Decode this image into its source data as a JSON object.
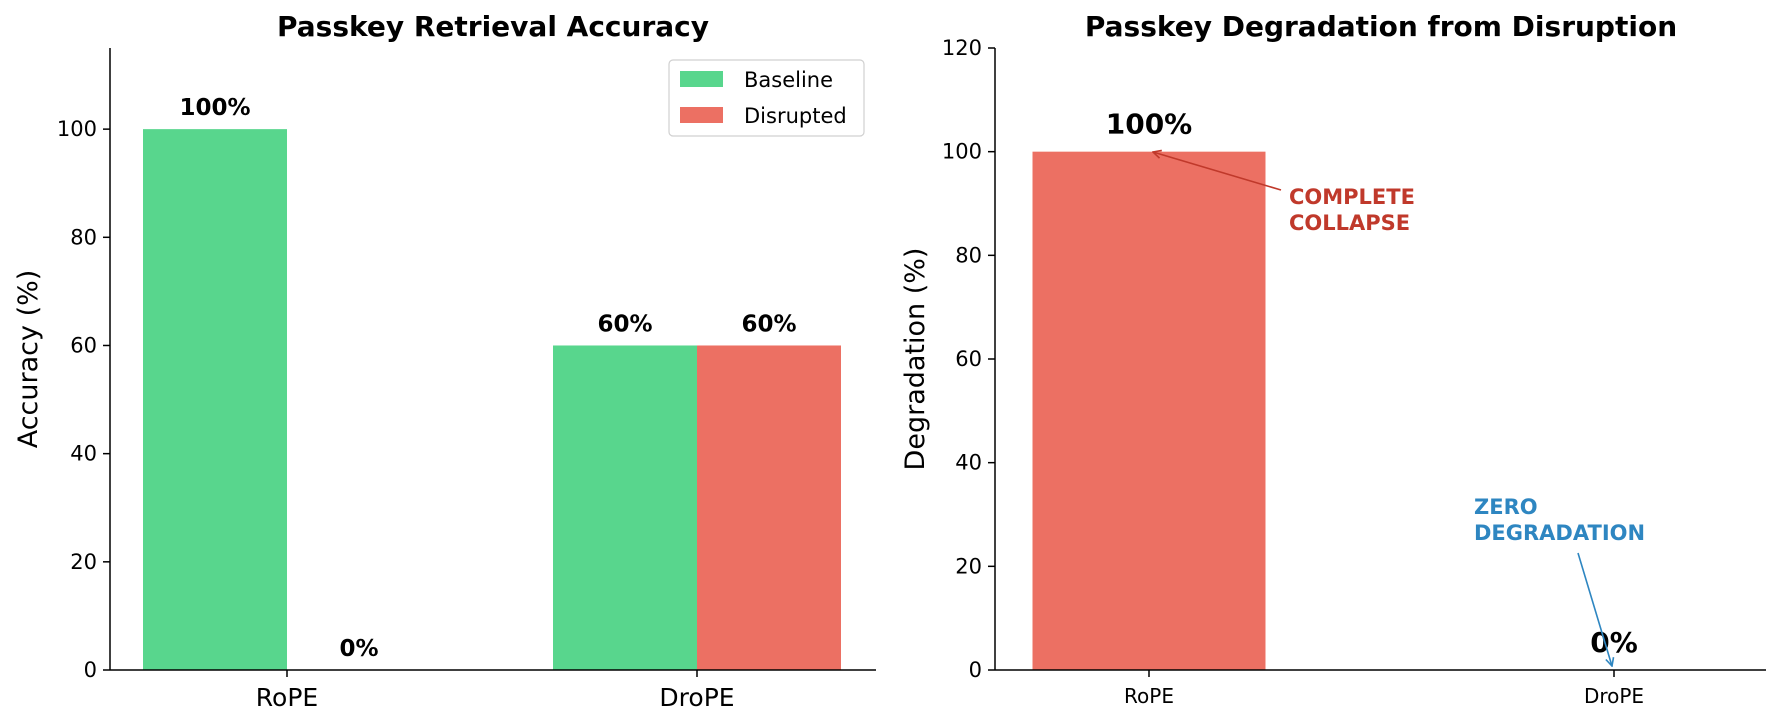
{
  "chart_data": [
    {
      "type": "bar",
      "title": "Passkey Retrieval Accuracy",
      "xlabel": "",
      "ylabel": "Accuracy (%)",
      "categories": [
        "RoPE",
        "DroPE"
      ],
      "series": [
        {
          "name": "Baseline",
          "values": [
            100,
            60
          ],
          "color": "#58D68D",
          "labels": [
            "100%",
            "60%"
          ]
        },
        {
          "name": "Disrupted",
          "values": [
            0,
            60
          ],
          "color": "#EC7063",
          "labels": [
            "0%",
            "60%"
          ]
        }
      ],
      "ylim": [
        0,
        115
      ],
      "yticks": [
        0,
        20,
        40,
        60,
        80,
        100
      ],
      "legend": {
        "position": "top-right"
      },
      "grid": false
    },
    {
      "type": "bar",
      "title": "Passkey Degradation from Disruption",
      "xlabel": "",
      "ylabel": "Degradation (%)",
      "categories": [
        "RoPE",
        "DroPE"
      ],
      "series": [
        {
          "values": [
            100,
            0
          ],
          "color": "#EC7063",
          "labels": [
            "100%",
            "0%"
          ]
        }
      ],
      "ylim": [
        0,
        120
      ],
      "yticks": [
        0,
        20,
        40,
        60,
        80,
        100,
        120
      ],
      "grid": false,
      "annotations": [
        {
          "lines": [
            "COMPLETE",
            "COLLAPSE"
          ],
          "color": "#C0392B",
          "target_category": "RoPE",
          "target_value": 100
        },
        {
          "lines": [
            "ZERO",
            "DEGRADATION"
          ],
          "color": "#2E86C1",
          "target_category": "DroPE",
          "target_value": 0
        }
      ]
    }
  ]
}
